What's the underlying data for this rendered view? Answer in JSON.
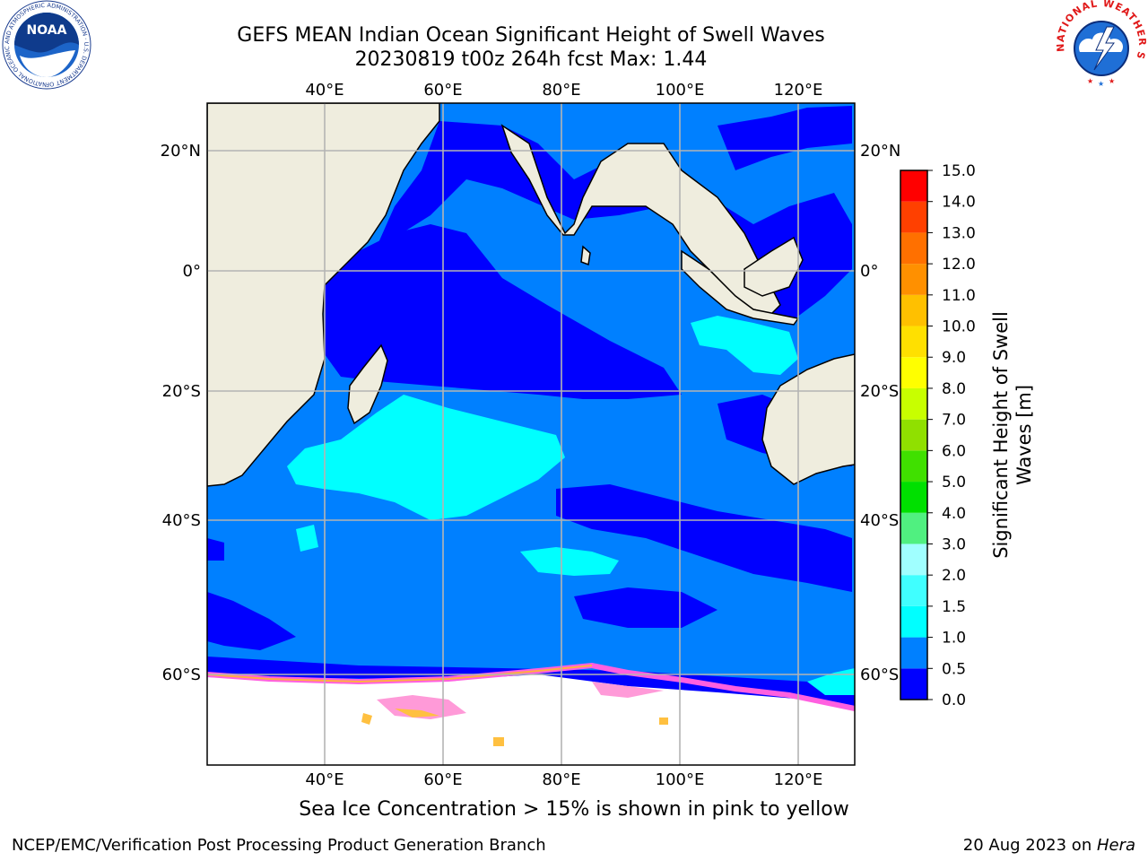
{
  "title": {
    "line1": "GEFS MEAN Indian Ocean Significant Height of Swell Waves",
    "line2": "20230819 t00z 264h fcst   Max: 1.44"
  },
  "logos": {
    "left": {
      "name": "NOAA",
      "ring_text": "NATIONAL OCEANIC AND ATMOSPHERIC ADMINISTRATION · U.S. DEPARTMENT OF COMMERCE"
    },
    "right": {
      "ring_text": "NATIONAL WEATHER SERVICE"
    }
  },
  "map": {
    "lon_range": [
      20,
      130
    ],
    "lat_range": [
      -70,
      28
    ],
    "lon_ticks": [
      "40°E",
      "60°E",
      "80°E",
      "100°E",
      "120°E"
    ],
    "lat_ticks": [
      "20°N",
      "0°",
      "20°S",
      "40°S",
      "60°S"
    ],
    "grid": true,
    "land_color": "#efedde",
    "ocean_base_color": "#0080ff",
    "ice_color": "#ffffff"
  },
  "colorbar": {
    "label_line1": "Significant Height of Swell",
    "label_line2": "Waves [m]",
    "ticks": [
      "0.0",
      "0.5",
      "1.0",
      "1.5",
      "2.0",
      "3.0",
      "4.0",
      "5.0",
      "6.0",
      "7.0",
      "8.0",
      "9.0",
      "10.0",
      "11.0",
      "12.0",
      "13.0",
      "14.0",
      "15.0"
    ],
    "colors": [
      "#0000ff",
      "#0080ff",
      "#00ffff",
      "#40ffff",
      "#a0ffff",
      "#50f080",
      "#00e000",
      "#40e000",
      "#90e000",
      "#c8ff00",
      "#ffff00",
      "#ffe000",
      "#ffc000",
      "#ff9000",
      "#ff7000",
      "#ff4000",
      "#ff0000"
    ]
  },
  "footer": {
    "note": "Sea Ice Concentration > 15% is shown in pink to yellow",
    "left": "NCEP/EMC/Verification Post Processing Product Generation Branch",
    "right_date": "20 Aug 2023 on ",
    "right_host": "Hera"
  }
}
